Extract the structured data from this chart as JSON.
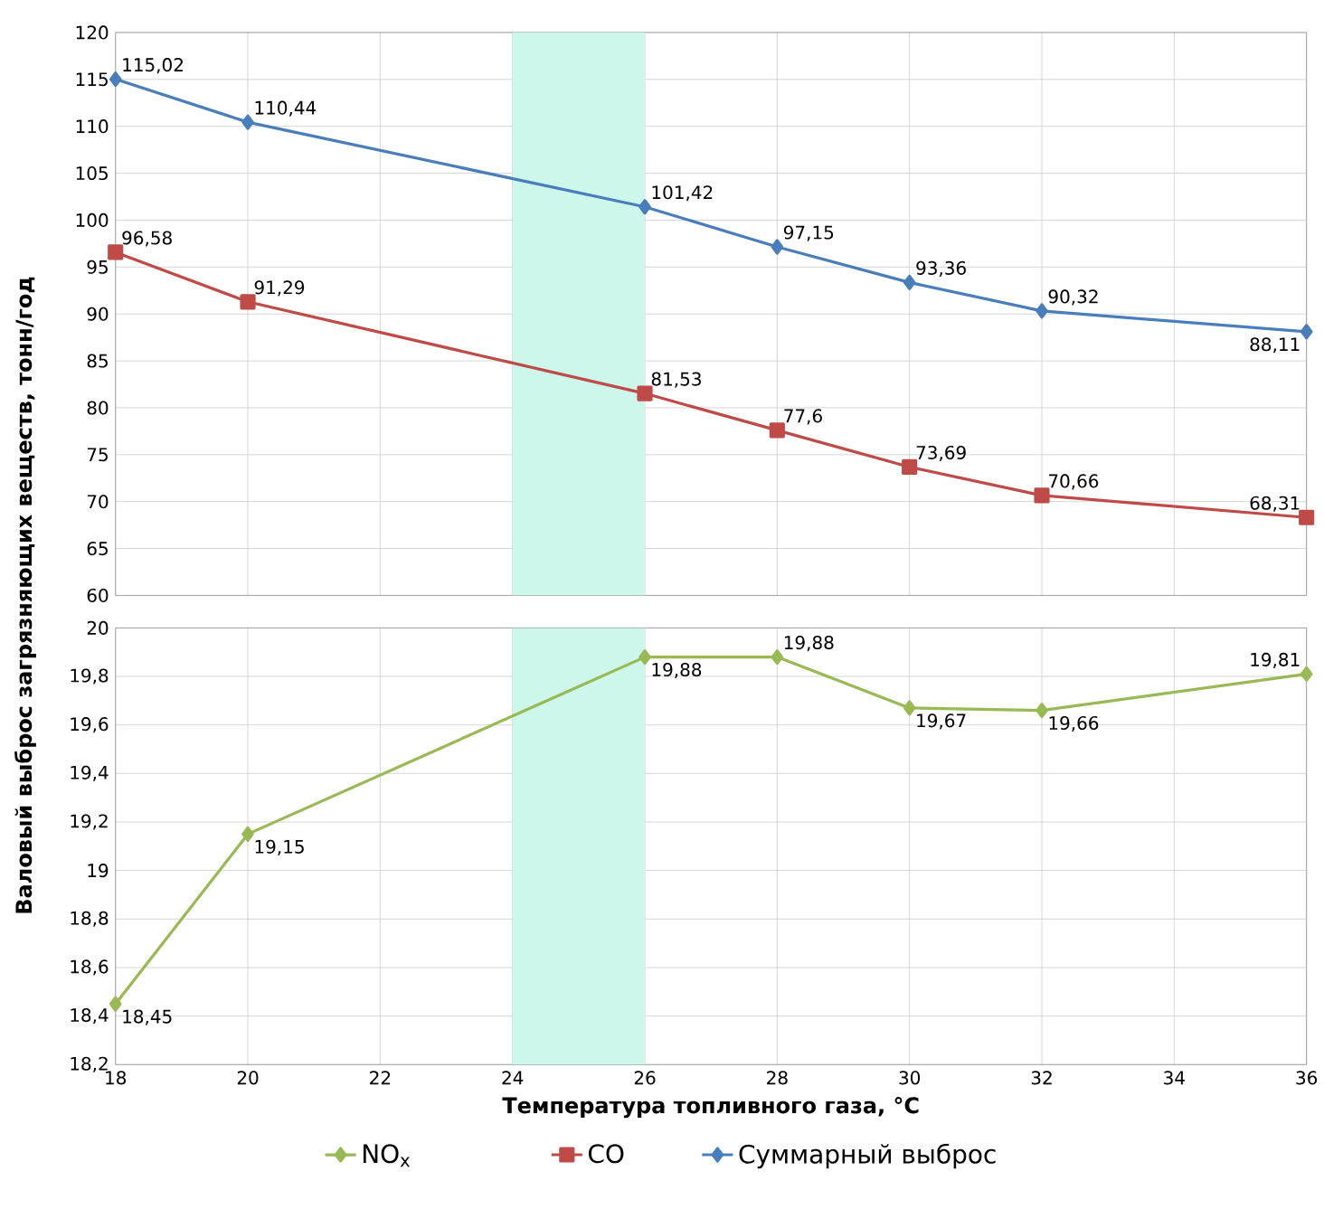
{
  "chart_data": [
    {
      "type": "line",
      "ylabel": "Валовый выброс загрязняющих веществ, тонн/год",
      "x": [
        18,
        20,
        26,
        28,
        30,
        32,
        36
      ],
      "series": [
        {
          "name": "CO",
          "color": "#be4b48",
          "marker": "square",
          "values": [
            96.58,
            91.29,
            81.53,
            77.6,
            73.69,
            70.66,
            68.31
          ],
          "value_labels": [
            "96,58",
            "91,29",
            "81,53",
            "77,6",
            "73,69",
            "70,66",
            "68,31"
          ]
        },
        {
          "name": "Суммарный выброс",
          "color": "#4a7ebb",
          "marker": "diamond",
          "values": [
            115.02,
            110.44,
            101.42,
            97.15,
            93.36,
            90.32,
            88.11
          ],
          "value_labels": [
            "115,02",
            "110,44",
            "101,42",
            "97,15",
            "93,36",
            "90,32",
            "88,11"
          ]
        }
      ],
      "xlim": [
        18,
        36
      ],
      "xticks": [
        18,
        20,
        22,
        24,
        26,
        28,
        30,
        32,
        34,
        36
      ],
      "ylim": [
        60,
        120
      ],
      "yticks": [
        60,
        65,
        70,
        75,
        80,
        85,
        90,
        95,
        100,
        105,
        110,
        115,
        120
      ],
      "grid": true,
      "legend": "bottom",
      "tick_labels": "y",
      "bands": [
        {
          "axis": "x",
          "from": 24,
          "to": 26,
          "color": "#ccf7ea"
        }
      ]
    },
    {
      "type": "line",
      "xlabel": "Температура топливного газа, °C",
      "x": [
        18,
        20,
        26,
        28,
        30,
        32,
        36
      ],
      "series": [
        {
          "name": "NO$_{x}$",
          "color": "#98b954",
          "marker": "diamond",
          "values": [
            18.45,
            19.15,
            19.88,
            19.88,
            19.67,
            19.66,
            19.81
          ],
          "value_labels": [
            "18,45",
            "19,15",
            "19,88",
            "19,88",
            "19,67",
            "19,66",
            "19,81"
          ]
        }
      ],
      "xlim": [
        18,
        36
      ],
      "xticks": [
        18,
        20,
        22,
        24,
        26,
        28,
        30,
        32,
        34,
        36
      ],
      "ylim": [
        18.2,
        20
      ],
      "yticks": [
        {
          "value": 18.2,
          "label": "18,2"
        },
        {
          "value": 18.4,
          "label": "18,4"
        },
        {
          "value": 18.6,
          "label": "18,6"
        },
        {
          "value": 18.8,
          "label": "18,8"
        },
        19,
        {
          "value": 19.2,
          "label": "19,2"
        },
        {
          "value": 19.4,
          "label": "19,4"
        },
        {
          "value": 19.6,
          "label": "19,6"
        },
        {
          "value": 19.8,
          "label": "19,8"
        },
        20
      ],
      "grid": true,
      "legend": "bottom",
      "bands": [
        {
          "axis": "x",
          "from": 24,
          "to": 26,
          "color": "#ccf7ea"
        }
      ]
    }
  ]
}
